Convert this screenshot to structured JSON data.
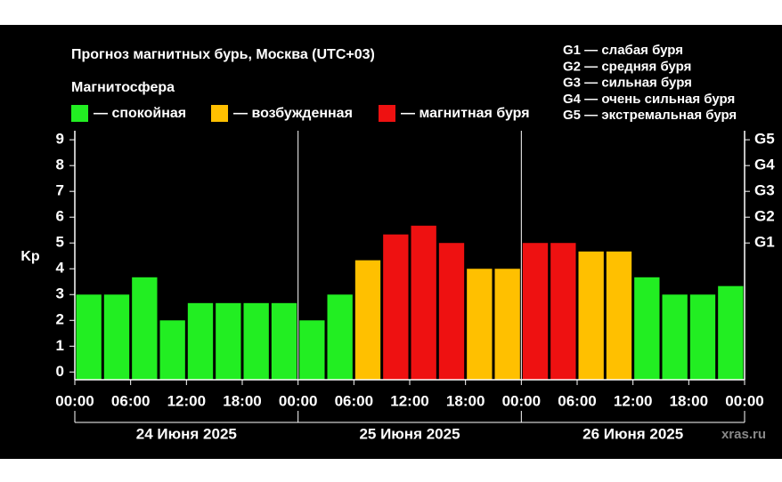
{
  "chart_data": {
    "type": "bar",
    "title": "Прогноз магнитных бурь, Москва (UTC+03)",
    "legend_title": "Магнитосфера",
    "legend": [
      {
        "label": "— спокойная",
        "color": "#22ee22"
      },
      {
        "label": "— возбужденная",
        "color": "#ffc000"
      },
      {
        "label": "— магнитная буря",
        "color": "#ee1111"
      }
    ],
    "storm_legend": [
      "G1 — слабая буря",
      "G2 — средняя буря",
      "G3 — сильная буря",
      "G4 — очень сильная буря",
      "G5 — экстремальная буря"
    ],
    "y_label": "Kp",
    "watermark": "xras.ru",
    "x": [
      0,
      3,
      6,
      9,
      12,
      15,
      18,
      21,
      24,
      27,
      30,
      33,
      36,
      39,
      42,
      45,
      48,
      51,
      54,
      57,
      60,
      63,
      66,
      69
    ],
    "values": [
      3,
      3,
      3.67,
      2,
      2.67,
      2.67,
      2.67,
      2.67,
      2,
      3,
      4.33,
      5.33,
      5.67,
      5,
      4,
      4,
      5,
      5,
      4.67,
      4.67,
      3.67,
      3,
      3,
      3.33
    ],
    "colors": [
      "#22ee22",
      "#22ee22",
      "#22ee22",
      "#22ee22",
      "#22ee22",
      "#22ee22",
      "#22ee22",
      "#22ee22",
      "#22ee22",
      "#22ee22",
      "#ffc000",
      "#ee1111",
      "#ee1111",
      "#ee1111",
      "#ffc000",
      "#ffc000",
      "#ee1111",
      "#ee1111",
      "#ffc000",
      "#ffc000",
      "#22ee22",
      "#22ee22",
      "#22ee22",
      "#22ee22"
    ],
    "xlim": [
      0,
      72
    ],
    "xticks": [
      {
        "value": 0,
        "label": "00:00"
      },
      {
        "value": 6,
        "label": "06:00"
      },
      {
        "value": 12,
        "label": "12:00"
      },
      {
        "value": 18,
        "label": "18:00"
      },
      {
        "value": 24,
        "label": "00:00"
      },
      {
        "value": 30,
        "label": "06:00"
      },
      {
        "value": 36,
        "label": "12:00"
      },
      {
        "value": 42,
        "label": "18:00"
      },
      {
        "value": 48,
        "label": "00:00"
      },
      {
        "value": 54,
        "label": "06:00"
      },
      {
        "value": 60,
        "label": "12:00"
      },
      {
        "value": 66,
        "label": "18:00"
      },
      {
        "value": 72,
        "label": "00:00"
      }
    ],
    "days": [
      {
        "value": 0,
        "label": "24 Июня 2025"
      },
      {
        "value": 24,
        "label": "25 Июня 2025"
      },
      {
        "value": 48,
        "label": "26 Июня 2025"
      },
      {
        "value": 72,
        "label": null
      }
    ],
    "ylim": [
      -0.3,
      9.35
    ],
    "yticks": [
      0,
      1,
      2,
      3,
      4,
      5,
      6,
      7,
      8,
      9
    ],
    "y2lim": [
      -0.3,
      9.35
    ],
    "y2ticks": [
      {
        "value": 5,
        "label": "G1"
      },
      {
        "value": 6,
        "label": "G2"
      },
      {
        "value": 7,
        "label": "G3"
      },
      {
        "value": 8,
        "label": "G4"
      },
      {
        "value": 9,
        "label": "G5"
      }
    ]
  }
}
